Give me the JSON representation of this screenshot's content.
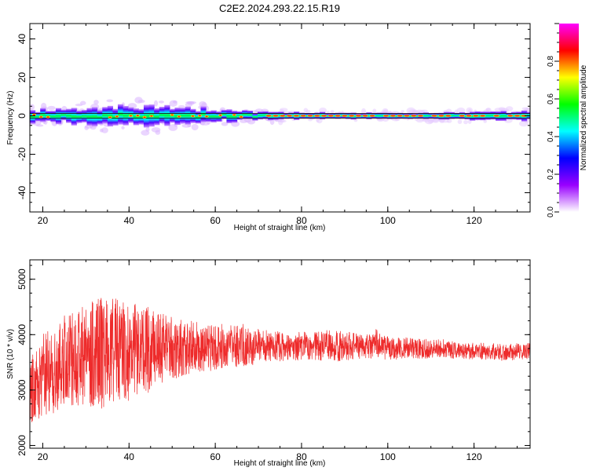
{
  "title": "C2E2.2024.293.22.15.R19",
  "chart_data": [
    {
      "type": "heatmap",
      "xlabel": "Height of straight line (km)",
      "ylabel": "Frequency (Hz)",
      "xlim": [
        17,
        133
      ],
      "ylim": [
        -50,
        48
      ],
      "xticks": [
        "20",
        "40",
        "60",
        "80",
        "100",
        "120"
      ],
      "yticks": [
        "40",
        "20",
        "0",
        "-20",
        "-40"
      ],
      "colorbar": {
        "label": "Normalized spectral amplitude",
        "range": [
          0,
          1
        ],
        "ticks": [
          "0.0",
          "0.2",
          "0.4",
          "0.6",
          "0.8"
        ],
        "colors": [
          "#ffffff",
          "#9900ff",
          "#0000ff",
          "#00ffff",
          "#00ff00",
          "#ffff00",
          "#ff0000",
          "#ff00ff"
        ]
      },
      "band": [
        {
          "x": 18,
          "halfwidth": 3
        },
        {
          "x": 30,
          "halfwidth": 4
        },
        {
          "x": 45,
          "halfwidth": 5
        },
        {
          "x": 58,
          "halfwidth": 3.5
        },
        {
          "x": 70,
          "halfwidth": 2
        },
        {
          "x": 90,
          "halfwidth": 1.5
        },
        {
          "x": 110,
          "halfwidth": 1.5
        },
        {
          "x": 120,
          "halfwidth": 2
        },
        {
          "x": 133,
          "halfwidth": 2.5
        }
      ],
      "center_frequency": 0
    },
    {
      "type": "line",
      "xlabel": "Height of straight line (km)",
      "ylabel": "SNR (10 * v/v)",
      "xlim": [
        17,
        133
      ],
      "ylim": [
        1950,
        5350
      ],
      "xticks": [
        "20",
        "40",
        "60",
        "80",
        "100",
        "120"
      ],
      "yticks": [
        "2000",
        "3000",
        "4000",
        "5000"
      ],
      "color": "#ee2b2b",
      "series": [
        {
          "x": [
            17,
            18,
            19,
            20,
            21,
            22,
            23,
            24,
            25,
            26,
            27,
            28,
            29,
            30,
            31,
            32,
            33,
            34,
            35,
            36,
            37,
            38,
            39,
            40,
            41,
            42,
            43,
            44,
            45,
            46,
            47,
            48,
            49,
            50,
            52,
            54,
            56,
            58,
            60,
            62,
            64,
            65,
            66,
            68,
            70,
            72,
            74,
            76,
            78,
            80,
            82,
            84,
            85,
            86,
            88,
            90,
            92,
            94,
            96,
            97,
            98,
            100,
            102,
            104,
            106,
            108,
            110,
            112,
            114,
            116,
            118,
            120,
            122,
            124,
            126,
            128,
            130,
            133
          ],
          "y_mean": [
            3000,
            3050,
            3150,
            3250,
            3300,
            3350,
            3400,
            3450,
            3500,
            3520,
            3540,
            3560,
            3600,
            3620,
            3650,
            3660,
            3680,
            3700,
            3700,
            3720,
            3700,
            3690,
            3680,
            3700,
            3700,
            3720,
            3720,
            3700,
            3750,
            3760,
            3750,
            3760,
            3740,
            3740,
            3760,
            3760,
            3770,
            3780,
            3770,
            3800,
            3800,
            3780,
            3790,
            3790,
            3780,
            3780,
            3780,
            3790,
            3780,
            3800,
            3790,
            3800,
            3790,
            3790,
            3800,
            3790,
            3800,
            3790,
            3770,
            3900,
            3790,
            3760,
            3750,
            3760,
            3750,
            3740,
            3750,
            3760,
            3750,
            3700,
            3700,
            3700,
            3700,
            3700,
            3680,
            3680,
            3700,
            3700
          ],
          "y_spread": [
            600,
            650,
            700,
            750,
            800,
            800,
            850,
            850,
            850,
            850,
            850,
            850,
            900,
            900,
            950,
            950,
            1000,
            1050,
            1000,
            1000,
            950,
            900,
            900,
            900,
            850,
            850,
            800,
            800,
            750,
            700,
            700,
            650,
            600,
            600,
            550,
            500,
            450,
            450,
            400,
            400,
            380,
            380,
            360,
            340,
            320,
            300,
            280,
            260,
            260,
            250,
            250,
            260,
            280,
            300,
            280,
            260,
            240,
            230,
            230,
            260,
            230,
            210,
            200,
            190,
            180,
            180,
            170,
            160,
            160,
            150,
            150,
            150,
            150,
            150,
            150,
            150,
            150,
            150
          ]
        }
      ]
    }
  ]
}
